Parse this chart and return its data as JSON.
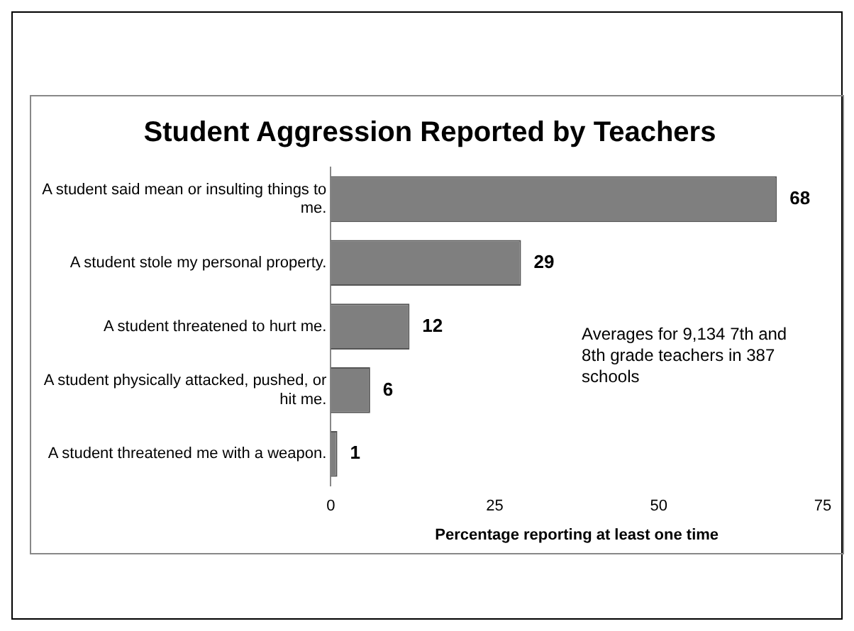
{
  "chart_data": {
    "type": "bar",
    "orientation": "horizontal",
    "title": "Student Aggression Reported by Teachers",
    "xlabel": "Percentage reporting at least one time",
    "categories": [
      "A student said mean or insulting things to me.",
      "A student stole my personal property.",
      "A student threatened to hurt me.",
      "A student physically attacked, pushed, or hit me.",
      "A student threatened me with a weapon."
    ],
    "values": [
      68,
      29,
      12,
      6,
      1
    ],
    "color": "#7f7f7f",
    "xlim": [
      0,
      75
    ],
    "xticks": [
      0,
      25,
      50,
      75
    ],
    "grid": false,
    "legend": false,
    "data_labels": true,
    "annotations": [
      "Averages for 9,134 7th and 8th grade teachers in 387 schools"
    ]
  }
}
